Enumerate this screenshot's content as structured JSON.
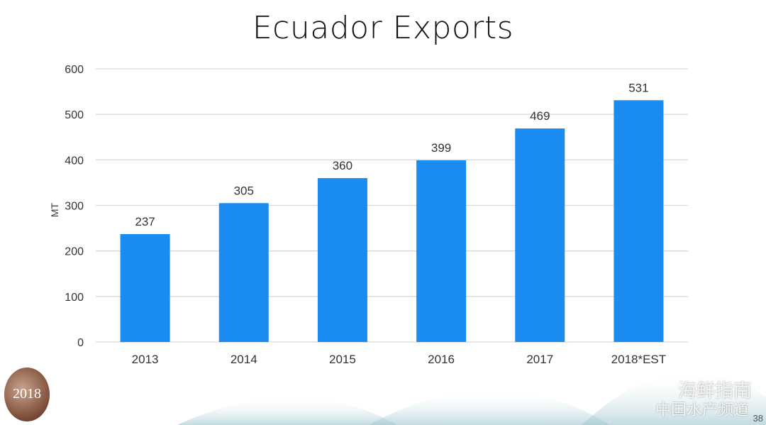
{
  "slide": {
    "page_number": "38",
    "logo_left_text": "2018",
    "watermark_line1": "海鲜指南",
    "watermark_line2": "中国水产频道"
  },
  "chart_data": {
    "type": "bar",
    "title": "Ecuador Exports",
    "xlabel": "",
    "ylabel": "MT",
    "categories": [
      "2013",
      "2014",
      "2015",
      "2016",
      "2017",
      "2018*EST"
    ],
    "values": [
      237,
      305,
      360,
      399,
      469,
      531
    ],
    "data_labels": [
      "237",
      "305",
      "360",
      "399",
      "469",
      "531"
    ],
    "ylim": [
      0,
      600
    ],
    "yticks": [
      0,
      100,
      200,
      300,
      400,
      500,
      600
    ],
    "grid": true,
    "legend": "none",
    "colors": {
      "bar": "#1a8cf0",
      "grid": "#d9d9d9",
      "text": "#333333"
    }
  }
}
